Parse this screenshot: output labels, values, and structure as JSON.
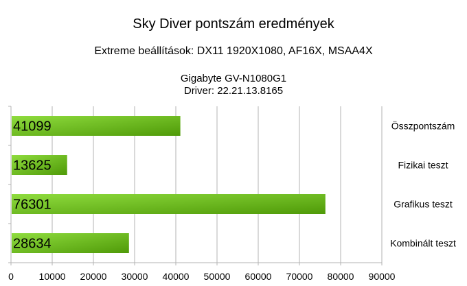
{
  "chart_data": {
    "type": "bar",
    "orientation": "horizontal",
    "title": "Sky Diver pontszám eredmények",
    "subtitle": "Extreme beállítások: DX11 1920X1080, AF16X, MSAA4X",
    "subtitle_lines": [
      "Gigabyte GV-N1080G1",
      "Driver: 22.21.13.8165"
    ],
    "categories": [
      "Összpontszám",
      "Fizikai teszt",
      "Grafikus teszt",
      "Kombinált teszt"
    ],
    "values": [
      41099,
      13625,
      76301,
      28634
    ],
    "xlim": [
      0,
      90000
    ],
    "xticks": [
      "0",
      "10000",
      "20000",
      "30000",
      "40000",
      "50000",
      "60000",
      "70000",
      "80000",
      "90000"
    ],
    "grid": true,
    "legend": "none",
    "category_labels_side": "right",
    "value_labels": "inside-start",
    "colors": {
      "bar_light": "#8fdc3e",
      "bar_dark": "#4f9a08",
      "grid": "#b3b3b3"
    }
  }
}
